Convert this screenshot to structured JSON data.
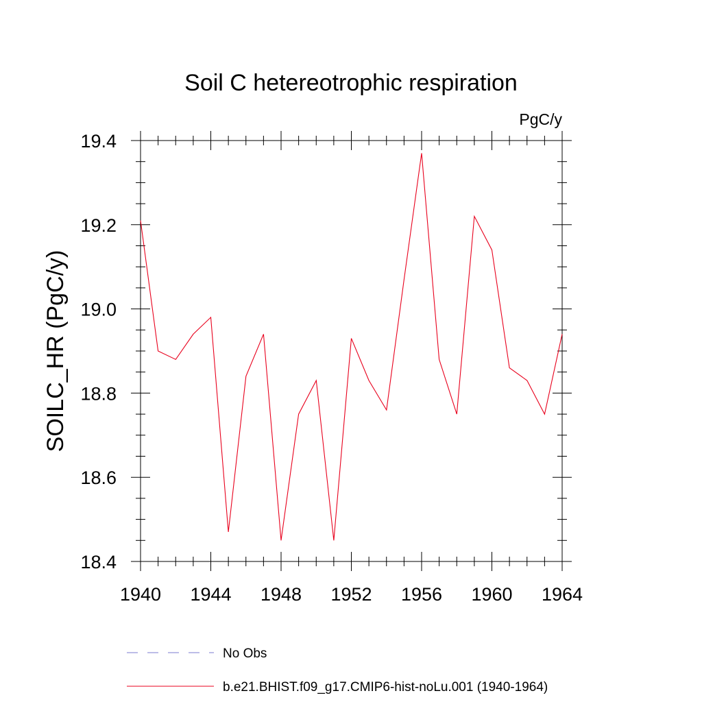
{
  "chart_data": {
    "type": "line",
    "title": "Soil C hetereotrophic respiration",
    "units_label": "PgC/y",
    "ylabel": "SOILC_HR  (PgC/y)",
    "xlabel": "",
    "xlim": [
      1940,
      1964
    ],
    "ylim": [
      18.4,
      19.4
    ],
    "x_ticks": [
      1940,
      1944,
      1948,
      1952,
      1956,
      1960,
      1964
    ],
    "y_ticks": [
      18.4,
      18.6,
      18.8,
      19.0,
      19.2,
      19.4
    ],
    "x_tick_labels": [
      "1940",
      "1944",
      "1948",
      "1952",
      "1956",
      "1960",
      "1964"
    ],
    "y_tick_labels": [
      "18.4",
      "18.6",
      "18.8",
      "19.0",
      "19.2",
      "19.4"
    ],
    "grid": false,
    "legend_position": "bottom",
    "series": [
      {
        "name": "b.e21.BHIST.f09_g17.CMIP6-hist-noLu.001 (1940-1964)",
        "color": "#e8001c",
        "dash": "solid",
        "x": [
          1940,
          1941,
          1942,
          1943,
          1944,
          1945,
          1946,
          1947,
          1948,
          1949,
          1950,
          1951,
          1952,
          1953,
          1954,
          1955,
          1956,
          1957,
          1958,
          1959,
          1960,
          1961,
          1962,
          1963,
          1964
        ],
        "values": [
          19.21,
          18.9,
          18.88,
          18.94,
          18.98,
          18.47,
          18.84,
          18.94,
          18.45,
          18.75,
          18.83,
          18.45,
          18.93,
          18.83,
          18.76,
          19.07,
          19.37,
          18.88,
          18.75,
          19.22,
          19.14,
          18.86,
          18.83,
          18.75,
          18.94
        ]
      }
    ],
    "legend": [
      {
        "label": "No Obs",
        "color": "#7b7bd0",
        "dash": "dashed"
      },
      {
        "label": "b.e21.BHIST.f09_g17.CMIP6-hist-noLu.001 (1940-1964)",
        "color": "#e8001c",
        "dash": "solid"
      }
    ]
  }
}
